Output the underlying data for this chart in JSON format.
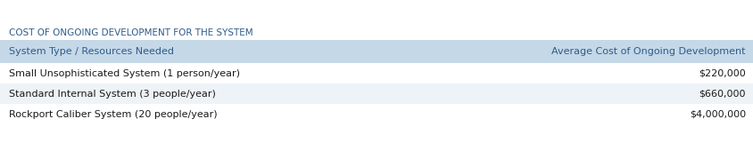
{
  "title": "COST OF ONGOING DEVELOPMENT FOR THE SYSTEM",
  "title_color": "#2E5C8A",
  "header": [
    "System Type / Resources Needed",
    "Average Cost of Ongoing Development"
  ],
  "rows": [
    [
      "Small Unsophisticated System (1 person/year)",
      "$220,000"
    ],
    [
      "Standard Internal System (3 people/year)",
      "$660,000"
    ],
    [
      "Rockport Caliber System (20 people/year)",
      "$4,000,000"
    ]
  ],
  "header_bg": "#C5D8E8",
  "row_bg_odd": "#EEF3F8",
  "row_bg_even": "#EEF3F8",
  "row_bg_white": "#FFFFFF",
  "header_text_color": "#2E5C8A",
  "row_text_color": "#1A1A1A",
  "fig_bg": "#FFFFFF",
  "figsize": [
    8.44,
    1.61
  ],
  "dpi": 100,
  "title_fontsize": 7.5,
  "header_fontsize": 8.0,
  "row_fontsize": 8.0
}
